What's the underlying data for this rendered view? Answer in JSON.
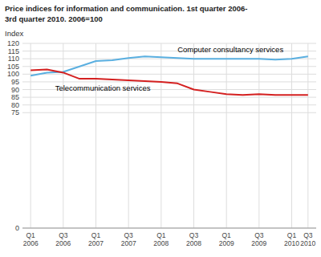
{
  "chart_data": {
    "type": "line",
    "title": "Price indices for information and communication. 1st quarter 2006-",
    "subtitle": "3rd quarter 2010. 2006=100",
    "y_label": "Index",
    "categories": [
      "Q1\n2006",
      null,
      "Q3\n2006",
      null,
      "Q1\n2007",
      null,
      "Q3\n2007",
      null,
      "Q1\n2008",
      null,
      "Q3\n2008",
      null,
      "Q1\n2009",
      null,
      "Q3\n2009",
      null,
      "Q1\n2010",
      "Q3\n2010"
    ],
    "series": [
      {
        "name": "Computer consultancy services",
        "color": "#5aafe0",
        "values": [
          99.0,
          101.0,
          101.5,
          105.0,
          108.5,
          109.0,
          110.5,
          111.5,
          111.0,
          110.5,
          110.0,
          110.0,
          110.0,
          110.0,
          110.0,
          109.5,
          110.0,
          111.5
        ]
      },
      {
        "name": "Telecommunication services",
        "color": "#d42020",
        "values": [
          102.5,
          103.0,
          101.0,
          97.0,
          97.0,
          96.5,
          96.0,
          95.5,
          95.0,
          94.0,
          90.0,
          88.5,
          87.0,
          86.5,
          87.0,
          86.5,
          86.5,
          86.5
        ]
      }
    ],
    "ylim": [
      0,
      120
    ],
    "yticks": [
      0,
      75,
      80,
      85,
      90,
      95,
      100,
      105,
      110,
      115,
      120
    ],
    "grid": true
  }
}
